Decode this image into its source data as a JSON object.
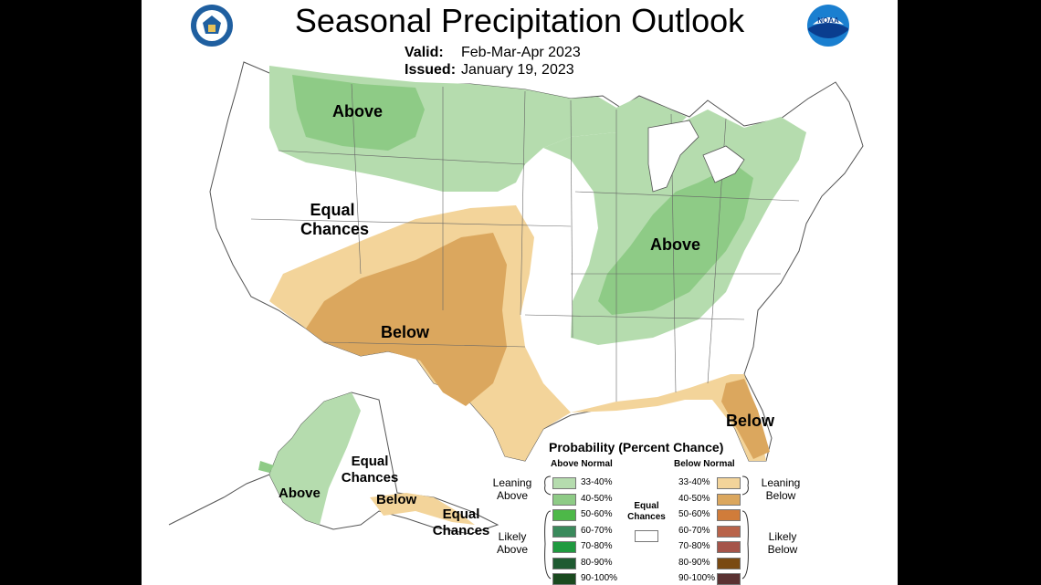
{
  "title": "Seasonal Precipitation Outlook",
  "valid": {
    "label": "Valid:",
    "value": "Feb-Mar-Apr 2023"
  },
  "issued": {
    "label": "Issued:",
    "value": "January 19, 2023"
  },
  "logos": {
    "left": "us-dept-of-commerce-seal",
    "right": "noaa-logo",
    "noaa_text": "NOAA"
  },
  "map_labels": {
    "above_northwest": "Above",
    "equal_west_1": "Equal",
    "equal_west_2": "Chances",
    "below_southwest": "Below",
    "above_east": "Above",
    "below_florida": "Below",
    "above_alaska": "Above",
    "equal_alaska_1": "Equal",
    "equal_alaska_2": "Chances",
    "below_alaska": "Below",
    "equal_aleutians_1": "Equal",
    "equal_aleutians_2": "Chances"
  },
  "legend": {
    "title": "Probability (Percent Chance)",
    "above_header": "Above Normal",
    "below_header": "Below Normal",
    "equal_1": "Equal",
    "equal_2": "Chances",
    "leaning_above_1": "Leaning",
    "leaning_above_2": "Above",
    "likely_above_1": "Likely",
    "likely_above_2": "Above",
    "leaning_below_1": "Leaning",
    "leaning_below_2": "Below",
    "likely_below_1": "Likely",
    "likely_below_2": "Below",
    "above": [
      {
        "range": "33-40%",
        "color": "#b5dcae"
      },
      {
        "range": "40-50%",
        "color": "#8ecb86"
      },
      {
        "range": "50-60%",
        "color": "#4db848"
      },
      {
        "range": "60-70%",
        "color": "#3a8a5c"
      },
      {
        "range": "70-80%",
        "color": "#1f9a3f"
      },
      {
        "range": "80-90%",
        "color": "#1f5b32"
      },
      {
        "range": "90-100%",
        "color": "#1a4a1f"
      }
    ],
    "below": [
      {
        "range": "33-40%",
        "color": "#f3d49a"
      },
      {
        "range": "40-50%",
        "color": "#dba75e"
      },
      {
        "range": "50-60%",
        "color": "#d07c3a"
      },
      {
        "range": "60-70%",
        "color": "#b8634a"
      },
      {
        "range": "70-80%",
        "color": "#a5544a"
      },
      {
        "range": "80-90%",
        "color": "#7a4a12"
      },
      {
        "range": "90-100%",
        "color": "#5a3232"
      }
    ],
    "equal_color": "#ffffff"
  },
  "colors": {
    "above_leaning": "#b5dcae",
    "above_40_50": "#8ecb86",
    "below_leaning": "#f3d49a",
    "below_40_50": "#dba75e",
    "borders": "#555555"
  }
}
